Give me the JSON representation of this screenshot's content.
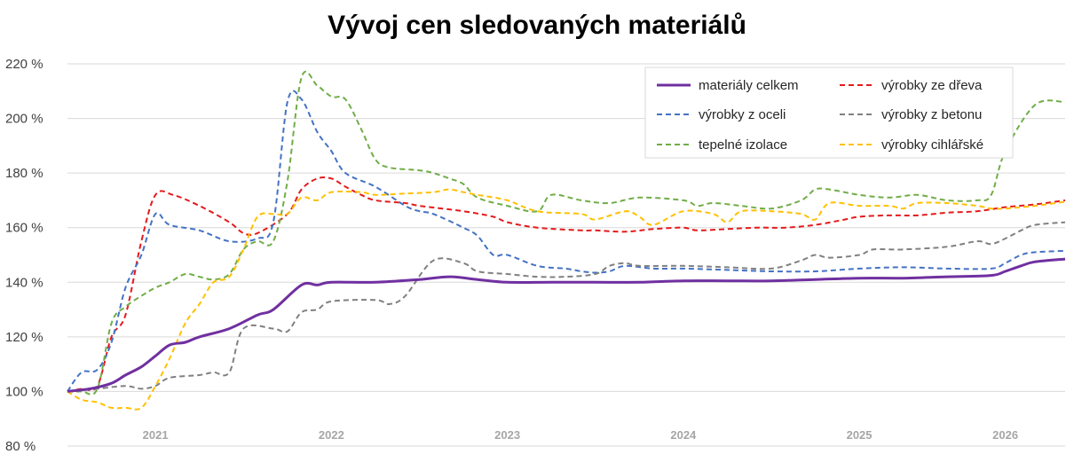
{
  "chart_data": {
    "type": "line",
    "title": "Vývoj cen sledovaných materiálů",
    "xlabel": "",
    "ylabel": "",
    "ylim": [
      80,
      220
    ],
    "y_ticks": [
      80,
      100,
      120,
      140,
      160,
      180,
      200,
      220
    ],
    "y_tick_suffix": " %",
    "x_range": [
      2020.5,
      2026.17
    ],
    "year_labels": [
      {
        "text": "2021",
        "x": 2021.0
      },
      {
        "text": "2022",
        "x": 2022.0
      },
      {
        "text": "2023",
        "x": 2023.0
      },
      {
        "text": "2024",
        "x": 2024.0
      },
      {
        "text": "2025",
        "x": 2025.0
      },
      {
        "text": "2026",
        "x": 2025.83
      }
    ],
    "grid": true,
    "legend": "top-right",
    "series": [
      {
        "name": "materiály celkem",
        "color": "#7030a0",
        "style": "solid",
        "points": [
          [
            2020.5,
            100
          ],
          [
            2020.63,
            101
          ],
          [
            2020.75,
            103
          ],
          [
            2020.83,
            106
          ],
          [
            2020.92,
            109
          ],
          [
            2021.0,
            113
          ],
          [
            2021.08,
            117
          ],
          [
            2021.17,
            118
          ],
          [
            2021.25,
            120
          ],
          [
            2021.42,
            123
          ],
          [
            2021.58,
            128
          ],
          [
            2021.67,
            130
          ],
          [
            2021.83,
            139
          ],
          [
            2021.92,
            139
          ],
          [
            2022.0,
            140
          ],
          [
            2022.25,
            140
          ],
          [
            2022.5,
            141
          ],
          [
            2022.67,
            142
          ],
          [
            2022.83,
            141
          ],
          [
            2023.0,
            140
          ],
          [
            2023.25,
            140
          ],
          [
            2023.5,
            140
          ],
          [
            2023.75,
            140
          ],
          [
            2024.0,
            140.5
          ],
          [
            2024.25,
            140.5
          ],
          [
            2024.5,
            140.5
          ],
          [
            2024.75,
            141
          ],
          [
            2025.0,
            141.5
          ],
          [
            2025.25,
            141.5
          ],
          [
            2025.5,
            142
          ],
          [
            2025.75,
            142.5
          ],
          [
            2025.83,
            144
          ],
          [
            2025.92,
            146
          ],
          [
            2026.0,
            147.5
          ],
          [
            2026.17,
            148.5
          ]
        ]
      },
      {
        "name": "výrobky ze dřeva",
        "color": "#e41a1c",
        "style": "dashed",
        "points": [
          [
            2020.5,
            100
          ],
          [
            2020.58,
            101
          ],
          [
            2020.67,
            102
          ],
          [
            2020.75,
            120
          ],
          [
            2020.83,
            128
          ],
          [
            2020.92,
            155
          ],
          [
            2021.0,
            172
          ],
          [
            2021.1,
            172
          ],
          [
            2021.25,
            168
          ],
          [
            2021.42,
            162
          ],
          [
            2021.5,
            158
          ],
          [
            2021.58,
            158
          ],
          [
            2021.75,
            165
          ],
          [
            2021.83,
            174
          ],
          [
            2021.92,
            178
          ],
          [
            2022.0,
            178
          ],
          [
            2022.08,
            175
          ],
          [
            2022.17,
            172
          ],
          [
            2022.25,
            170
          ],
          [
            2022.42,
            169
          ],
          [
            2022.5,
            168
          ],
          [
            2022.75,
            166
          ],
          [
            2022.92,
            164
          ],
          [
            2023.0,
            162
          ],
          [
            2023.17,
            160
          ],
          [
            2023.42,
            159
          ],
          [
            2023.5,
            159
          ],
          [
            2023.67,
            158.5
          ],
          [
            2023.83,
            159.5
          ],
          [
            2024.0,
            160
          ],
          [
            2024.08,
            159
          ],
          [
            2024.25,
            159.5
          ],
          [
            2024.42,
            160
          ],
          [
            2024.58,
            160
          ],
          [
            2024.75,
            161
          ],
          [
            2024.92,
            163
          ],
          [
            2025.0,
            164
          ],
          [
            2025.17,
            164.5
          ],
          [
            2025.33,
            164.5
          ],
          [
            2025.5,
            165.5
          ],
          [
            2025.67,
            166
          ],
          [
            2025.83,
            167.5
          ],
          [
            2026.0,
            168.5
          ],
          [
            2026.17,
            170
          ]
        ]
      },
      {
        "name": "výrobky z oceli",
        "color": "#4472c4",
        "style": "dashed",
        "points": [
          [
            2020.5,
            100
          ],
          [
            2020.58,
            107
          ],
          [
            2020.67,
            108
          ],
          [
            2020.75,
            118
          ],
          [
            2020.83,
            138
          ],
          [
            2020.92,
            150
          ],
          [
            2021.0,
            165
          ],
          [
            2021.08,
            161
          ],
          [
            2021.25,
            159
          ],
          [
            2021.42,
            155
          ],
          [
            2021.58,
            156
          ],
          [
            2021.67,
            162
          ],
          [
            2021.75,
            206
          ],
          [
            2021.83,
            207
          ],
          [
            2021.92,
            195
          ],
          [
            2022.0,
            188
          ],
          [
            2022.08,
            180
          ],
          [
            2022.25,
            175
          ],
          [
            2022.42,
            168
          ],
          [
            2022.5,
            166
          ],
          [
            2022.58,
            165
          ],
          [
            2022.75,
            160
          ],
          [
            2022.83,
            157
          ],
          [
            2022.92,
            150
          ],
          [
            2023.0,
            150
          ],
          [
            2023.17,
            146
          ],
          [
            2023.33,
            145
          ],
          [
            2023.42,
            144
          ],
          [
            2023.5,
            143.5
          ],
          [
            2023.58,
            144
          ],
          [
            2023.67,
            146
          ],
          [
            2023.83,
            145
          ],
          [
            2024.0,
            145
          ],
          [
            2024.25,
            144.5
          ],
          [
            2024.5,
            144
          ],
          [
            2024.75,
            144
          ],
          [
            2025.0,
            145
          ],
          [
            2025.25,
            145.5
          ],
          [
            2025.5,
            145
          ],
          [
            2025.75,
            145
          ],
          [
            2025.83,
            147
          ],
          [
            2025.92,
            150
          ],
          [
            2026.0,
            151
          ],
          [
            2026.17,
            151.5
          ]
        ]
      },
      {
        "name": "výrobky z betonu",
        "color": "#808080",
        "style": "dashed",
        "points": [
          [
            2020.5,
            100
          ],
          [
            2020.67,
            101
          ],
          [
            2020.83,
            102
          ],
          [
            2020.92,
            101
          ],
          [
            2021.0,
            102
          ],
          [
            2021.08,
            105
          ],
          [
            2021.25,
            106
          ],
          [
            2021.33,
            107
          ],
          [
            2021.42,
            107
          ],
          [
            2021.5,
            123
          ],
          [
            2021.67,
            123
          ],
          [
            2021.75,
            122
          ],
          [
            2021.83,
            129
          ],
          [
            2021.92,
            130
          ],
          [
            2022.0,
            133
          ],
          [
            2022.25,
            133.5
          ],
          [
            2022.33,
            132
          ],
          [
            2022.42,
            135
          ],
          [
            2022.58,
            148
          ],
          [
            2022.75,
            147
          ],
          [
            2022.83,
            144
          ],
          [
            2023.0,
            143
          ],
          [
            2023.17,
            142
          ],
          [
            2023.33,
            142
          ],
          [
            2023.5,
            143
          ],
          [
            2023.58,
            146
          ],
          [
            2023.67,
            147
          ],
          [
            2023.75,
            146
          ],
          [
            2024.0,
            146
          ],
          [
            2024.25,
            145.5
          ],
          [
            2024.5,
            145
          ],
          [
            2024.67,
            148
          ],
          [
            2024.75,
            150
          ],
          [
            2024.83,
            149
          ],
          [
            2025.0,
            150
          ],
          [
            2025.08,
            152
          ],
          [
            2025.25,
            152
          ],
          [
            2025.5,
            153
          ],
          [
            2025.67,
            155
          ],
          [
            2025.75,
            154
          ],
          [
            2025.83,
            156
          ],
          [
            2025.92,
            159
          ],
          [
            2026.0,
            161
          ],
          [
            2026.17,
            162
          ]
        ]
      },
      {
        "name": "tepelné izolace",
        "color": "#70ad47",
        "style": "dashed",
        "points": [
          [
            2020.5,
            100
          ],
          [
            2020.58,
            100
          ],
          [
            2020.67,
            101
          ],
          [
            2020.75,
            125
          ],
          [
            2020.83,
            131
          ],
          [
            2020.92,
            135
          ],
          [
            2021.0,
            138
          ],
          [
            2021.08,
            140
          ],
          [
            2021.17,
            143
          ],
          [
            2021.25,
            142
          ],
          [
            2021.33,
            141
          ],
          [
            2021.42,
            143
          ],
          [
            2021.5,
            152
          ],
          [
            2021.58,
            155
          ],
          [
            2021.67,
            155
          ],
          [
            2021.75,
            177
          ],
          [
            2021.83,
            215
          ],
          [
            2021.92,
            212
          ],
          [
            2022.0,
            208
          ],
          [
            2022.08,
            207
          ],
          [
            2022.17,
            196
          ],
          [
            2022.25,
            185
          ],
          [
            2022.33,
            182
          ],
          [
            2022.5,
            181
          ],
          [
            2022.58,
            180
          ],
          [
            2022.67,
            178
          ],
          [
            2022.75,
            176
          ],
          [
            2022.83,
            171
          ],
          [
            2023.0,
            168
          ],
          [
            2023.17,
            166
          ],
          [
            2023.25,
            172
          ],
          [
            2023.42,
            170
          ],
          [
            2023.58,
            169
          ],
          [
            2023.75,
            171
          ],
          [
            2024.0,
            170
          ],
          [
            2024.08,
            168
          ],
          [
            2024.17,
            169
          ],
          [
            2024.33,
            168
          ],
          [
            2024.5,
            167
          ],
          [
            2024.67,
            170
          ],
          [
            2024.75,
            174
          ],
          [
            2024.83,
            174
          ],
          [
            2025.0,
            172
          ],
          [
            2025.17,
            171
          ],
          [
            2025.33,
            172
          ],
          [
            2025.5,
            170
          ],
          [
            2025.67,
            170
          ],
          [
            2025.75,
            172
          ],
          [
            2025.83,
            188
          ],
          [
            2026.0,
            205
          ],
          [
            2026.17,
            206
          ]
        ]
      },
      {
        "name": "výrobky cihlářské",
        "color": "#ffc000",
        "style": "dashed",
        "points": [
          [
            2020.5,
            100
          ],
          [
            2020.58,
            97
          ],
          [
            2020.67,
            96
          ],
          [
            2020.75,
            94
          ],
          [
            2020.83,
            94
          ],
          [
            2020.92,
            94
          ],
          [
            2021.0,
            102
          ],
          [
            2021.08,
            112
          ],
          [
            2021.17,
            125
          ],
          [
            2021.25,
            132
          ],
          [
            2021.33,
            140
          ],
          [
            2021.42,
            142
          ],
          [
            2021.5,
            152
          ],
          [
            2021.58,
            164
          ],
          [
            2021.67,
            165
          ],
          [
            2021.75,
            165
          ],
          [
            2021.83,
            171
          ],
          [
            2021.92,
            170
          ],
          [
            2022.0,
            173
          ],
          [
            2022.17,
            173
          ],
          [
            2022.25,
            172
          ],
          [
            2022.42,
            172.5
          ],
          [
            2022.58,
            173
          ],
          [
            2022.67,
            174
          ],
          [
            2022.75,
            173
          ],
          [
            2022.83,
            172
          ],
          [
            2023.0,
            170
          ],
          [
            2023.17,
            166
          ],
          [
            2023.42,
            165
          ],
          [
            2023.5,
            163
          ],
          [
            2023.67,
            166
          ],
          [
            2023.75,
            164
          ],
          [
            2023.83,
            161
          ],
          [
            2024.0,
            166
          ],
          [
            2024.17,
            165
          ],
          [
            2024.25,
            162
          ],
          [
            2024.33,
            166
          ],
          [
            2024.5,
            166
          ],
          [
            2024.67,
            165
          ],
          [
            2024.75,
            163
          ],
          [
            2024.83,
            169
          ],
          [
            2025.0,
            168
          ],
          [
            2025.17,
            168
          ],
          [
            2025.25,
            167
          ],
          [
            2025.33,
            169
          ],
          [
            2025.5,
            169
          ],
          [
            2025.67,
            168
          ],
          [
            2025.75,
            167
          ],
          [
            2025.83,
            167
          ],
          [
            2026.0,
            168
          ],
          [
            2026.17,
            169.5
          ]
        ]
      }
    ]
  }
}
